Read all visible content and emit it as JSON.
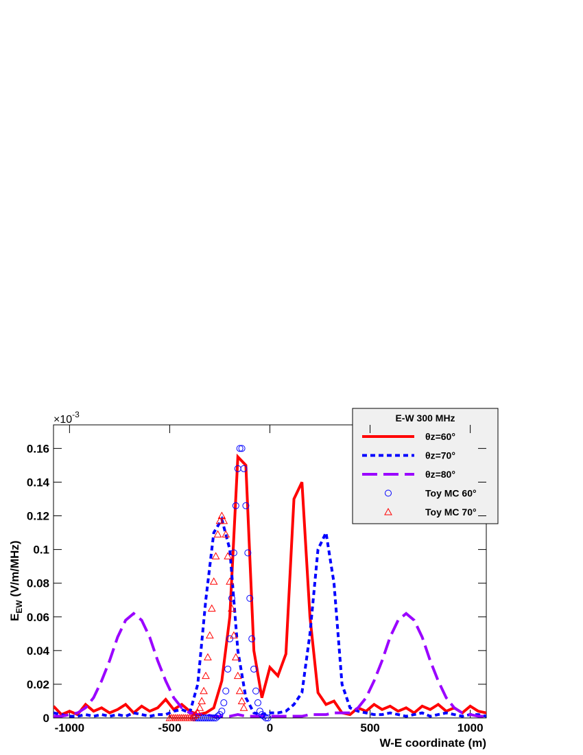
{
  "chart_data": {
    "type": "line",
    "xlabel": "W-E coordinate (m)",
    "ylabel": "E",
    "ylabel_sub": "EW",
    "ylabel_unit": " (V/m/MHz)",
    "y_multiplier": "×10",
    "y_multiplier_exp": "-3",
    "legend_title": "E-W 300 MHz",
    "legend_position": "upper right",
    "xlim": [
      -1080,
      1080
    ],
    "ylim": [
      0,
      0.174
    ],
    "xticks": [
      -1000,
      -500,
      0,
      500,
      1000
    ],
    "yticks": [
      0,
      0.02,
      0.04,
      0.06,
      0.08,
      0.1,
      0.12,
      0.14,
      0.16
    ],
    "series": [
      {
        "name": "θz=60°",
        "color": "#ff0000",
        "dash": "solid",
        "x": [
          -1080,
          -1040,
          -1000,
          -960,
          -920,
          -880,
          -840,
          -800,
          -760,
          -720,
          -680,
          -640,
          -600,
          -560,
          -520,
          -480,
          -440,
          -400,
          -360,
          -320,
          -280,
          -240,
          -200,
          -160,
          -120,
          -80,
          -40,
          0,
          40,
          80,
          120,
          160,
          200,
          240,
          280,
          320,
          360,
          400,
          440,
          480,
          520,
          560,
          600,
          640,
          680,
          720,
          760,
          800,
          840,
          880,
          920,
          960,
          1000,
          1040,
          1080
        ],
        "values": [
          0.007,
          0.002,
          0.004,
          0.002,
          0.008,
          0.004,
          0.006,
          0.003,
          0.005,
          0.008,
          0.003,
          0.007,
          0.004,
          0.006,
          0.011,
          0.005,
          0.008,
          0.004,
          0.002,
          0.003,
          0.006,
          0.022,
          0.06,
          0.155,
          0.15,
          0.04,
          0.012,
          0.03,
          0.025,
          0.038,
          0.13,
          0.14,
          0.06,
          0.015,
          0.008,
          0.01,
          0.003,
          0.002,
          0.006,
          0.004,
          0.008,
          0.005,
          0.007,
          0.004,
          0.006,
          0.003,
          0.007,
          0.005,
          0.008,
          0.004,
          0.006,
          0.003,
          0.007,
          0.004,
          0.003
        ]
      },
      {
        "name": "θz=70°",
        "color": "#0000ff",
        "dash": "dotted",
        "x": [
          -1080,
          -1040,
          -1000,
          -960,
          -920,
          -880,
          -840,
          -800,
          -760,
          -720,
          -680,
          -640,
          -600,
          -560,
          -520,
          -480,
          -440,
          -400,
          -360,
          -320,
          -280,
          -240,
          -200,
          -160,
          -120,
          -80,
          -40,
          0,
          40,
          80,
          120,
          160,
          200,
          240,
          280,
          320,
          360,
          400,
          440,
          480,
          520,
          560,
          600,
          640,
          680,
          720,
          760,
          800,
          840,
          880,
          920,
          960,
          1000,
          1040,
          1080
        ],
        "values": [
          0.003,
          0.002,
          0.001,
          0.001,
          0.002,
          0.001,
          0.002,
          0.001,
          0.002,
          0.001,
          0.003,
          0.002,
          0.001,
          0.002,
          0.002,
          0.004,
          0.005,
          0.003,
          0.02,
          0.07,
          0.11,
          0.118,
          0.1,
          0.04,
          0.012,
          0.003,
          0.002,
          0.003,
          0.003,
          0.004,
          0.008,
          0.015,
          0.05,
          0.1,
          0.11,
          0.08,
          0.02,
          0.006,
          0.004,
          0.003,
          0.002,
          0.002,
          0.003,
          0.002,
          0.001,
          0.002,
          0.003,
          0.001,
          0.002,
          0.003,
          0.002,
          0.001,
          0.002,
          0.002,
          0.001
        ]
      },
      {
        "name": "θz=80°",
        "color": "#9a00ff",
        "dash": "long",
        "x": [
          -1080,
          -1040,
          -1000,
          -960,
          -920,
          -880,
          -840,
          -800,
          -760,
          -720,
          -680,
          -640,
          -600,
          -560,
          -520,
          -480,
          -440,
          -400,
          -360,
          -320,
          -280,
          -240,
          -200,
          -160,
          -120,
          -80,
          -40,
          0,
          40,
          80,
          120,
          160,
          200,
          240,
          280,
          320,
          360,
          400,
          440,
          480,
          520,
          560,
          600,
          640,
          680,
          720,
          760,
          800,
          840,
          880,
          920,
          960,
          1000,
          1040,
          1080
        ],
        "values": [
          0.001,
          0.001,
          0.002,
          0.003,
          0.006,
          0.012,
          0.022,
          0.034,
          0.048,
          0.058,
          0.062,
          0.058,
          0.048,
          0.034,
          0.022,
          0.012,
          0.006,
          0.003,
          0.002,
          0.002,
          0.001,
          0.001,
          0.001,
          0.002,
          0.001,
          0.001,
          0.001,
          0.001,
          0.001,
          0.001,
          0.001,
          0.001,
          0.002,
          0.002,
          0.002,
          0.003,
          0.003,
          0.003,
          0.006,
          0.012,
          0.022,
          0.034,
          0.048,
          0.058,
          0.062,
          0.058,
          0.048,
          0.034,
          0.022,
          0.012,
          0.006,
          0.003,
          0.002,
          0.001,
          0.001
        ]
      },
      {
        "name": "Toy MC 60°",
        "color": "#0000ff",
        "marker": "circle",
        "x": [
          -380,
          -370,
          -360,
          -350,
          -340,
          -330,
          -320,
          -310,
          -300,
          -290,
          -280,
          -270,
          -260,
          -250,
          -240,
          -230,
          -220,
          -210,
          -200,
          -190,
          -180,
          -170,
          -160,
          -150,
          -140,
          -130,
          -120,
          -110,
          -100,
          -90,
          -80,
          -70,
          -60,
          -50,
          -40,
          -30,
          -20,
          -10
        ],
        "values": [
          0,
          0,
          0,
          0,
          0,
          0,
          0,
          0,
          0,
          0,
          0,
          0,
          0.001,
          0.002,
          0.004,
          0.009,
          0.016,
          0.029,
          0.047,
          0.071,
          0.098,
          0.126,
          0.148,
          0.16,
          0.16,
          0.148,
          0.126,
          0.098,
          0.071,
          0.047,
          0.029,
          0.016,
          0.009,
          0.004,
          0.002,
          0.001,
          0,
          0
        ]
      },
      {
        "name": "Toy MC 70°",
        "color": "#ff0000",
        "marker": "triangle",
        "x": [
          -500,
          -490,
          -480,
          -470,
          -460,
          -450,
          -440,
          -430,
          -420,
          -410,
          -400,
          -390,
          -380,
          -370,
          -360,
          -350,
          -340,
          -330,
          -320,
          -310,
          -300,
          -290,
          -280,
          -270,
          -260,
          -250,
          -240,
          -230,
          -220,
          -210,
          -200,
          -190,
          -180,
          -170,
          -160,
          -150,
          -140,
          -130
        ],
        "values": [
          0,
          0,
          0,
          0,
          0,
          0,
          0,
          0,
          0,
          0,
          0,
          0,
          0.001,
          0.002,
          0.003,
          0.006,
          0.01,
          0.016,
          0.025,
          0.036,
          0.049,
          0.065,
          0.081,
          0.096,
          0.109,
          0.117,
          0.12,
          0.117,
          0.109,
          0.096,
          0.081,
          0.065,
          0.049,
          0.036,
          0.025,
          0.016,
          0.01,
          0.006
        ]
      }
    ]
  }
}
